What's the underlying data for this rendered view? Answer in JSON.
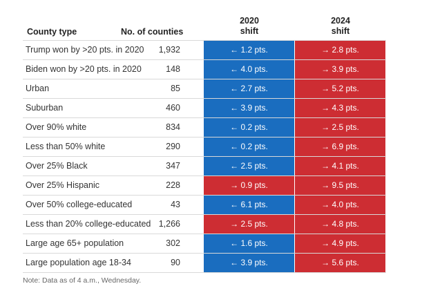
{
  "chart_data": {
    "type": "table",
    "headers": {
      "county_type": "County type",
      "count": "No. of counties",
      "shift_2020": "2020\nshift",
      "shift_2024": "2024\nshift"
    },
    "colors": {
      "left": "#1a6dbf",
      "right": "#cd2d33"
    },
    "rows": [
      {
        "county_type": "Trump won by >20 pts. in 2020",
        "count": "1,932",
        "shift_2020": "← 1.2 pts.",
        "shift_2024": "→ 2.8 pts.",
        "dir_2020": "left",
        "dir_2024": "right",
        "value_2020": -1.2,
        "value_2024": 2.8
      },
      {
        "county_type": "Biden won by >20 pts. in 2020",
        "count": "148",
        "shift_2020": "← 4.0 pts.",
        "shift_2024": "→ 3.9 pts.",
        "dir_2020": "left",
        "dir_2024": "right",
        "value_2020": -4.0,
        "value_2024": 3.9
      },
      {
        "county_type": "Urban",
        "count": "85",
        "shift_2020": "← 2.7 pts.",
        "shift_2024": "→ 5.2 pts.",
        "dir_2020": "left",
        "dir_2024": "right",
        "value_2020": -2.7,
        "value_2024": 5.2
      },
      {
        "county_type": "Suburban",
        "count": "460",
        "shift_2020": "← 3.9 pts.",
        "shift_2024": "→ 4.3 pts.",
        "dir_2020": "left",
        "dir_2024": "right",
        "value_2020": -3.9,
        "value_2024": 4.3
      },
      {
        "county_type": "Over 90% white",
        "count": "834",
        "shift_2020": "← 0.2 pts.",
        "shift_2024": "→ 2.5 pts.",
        "dir_2020": "left",
        "dir_2024": "right",
        "value_2020": -0.2,
        "value_2024": 2.5
      },
      {
        "county_type": "Less than 50% white",
        "count": "290",
        "shift_2020": "← 0.2 pts.",
        "shift_2024": "→ 6.9 pts.",
        "dir_2020": "left",
        "dir_2024": "right",
        "value_2020": -0.2,
        "value_2024": 6.9
      },
      {
        "county_type": "Over 25% Black",
        "count": "347",
        "shift_2020": "← 2.5 pts.",
        "shift_2024": "→ 4.1 pts.",
        "dir_2020": "left",
        "dir_2024": "right",
        "value_2020": -2.5,
        "value_2024": 4.1
      },
      {
        "county_type": "Over 25% Hispanic",
        "count": "228",
        "shift_2020": "→ 0.9 pts.",
        "shift_2024": "→ 9.5 pts.",
        "dir_2020": "right",
        "dir_2024": "right",
        "value_2020": 0.9,
        "value_2024": 9.5
      },
      {
        "county_type": "Over 50% college-educated",
        "count": "43",
        "shift_2020": "← 6.1 pts.",
        "shift_2024": "→ 4.0 pts.",
        "dir_2020": "left",
        "dir_2024": "right",
        "value_2020": -6.1,
        "value_2024": 4.0
      },
      {
        "county_type": "Less than 20% college-educated",
        "count": "1,266",
        "shift_2020": "→ 2.5 pts.",
        "shift_2024": "→ 4.8 pts.",
        "dir_2020": "right",
        "dir_2024": "right",
        "value_2020": 2.5,
        "value_2024": 4.8
      },
      {
        "county_type": "Large age 65+ population",
        "count": "302",
        "shift_2020": "← 1.6 pts.",
        "shift_2024": "→ 4.9 pts.",
        "dir_2020": "left",
        "dir_2024": "right",
        "value_2020": -1.6,
        "value_2024": 4.9
      },
      {
        "county_type": "Large population age 18-34",
        "count": "90",
        "shift_2020": "← 3.9 pts.",
        "shift_2024": "→ 5.6 pts.",
        "dir_2020": "left",
        "dir_2024": "right",
        "value_2020": -3.9,
        "value_2024": 5.6
      }
    ],
    "note": "Note: Data as of 4 a.m., Wednesday."
  }
}
